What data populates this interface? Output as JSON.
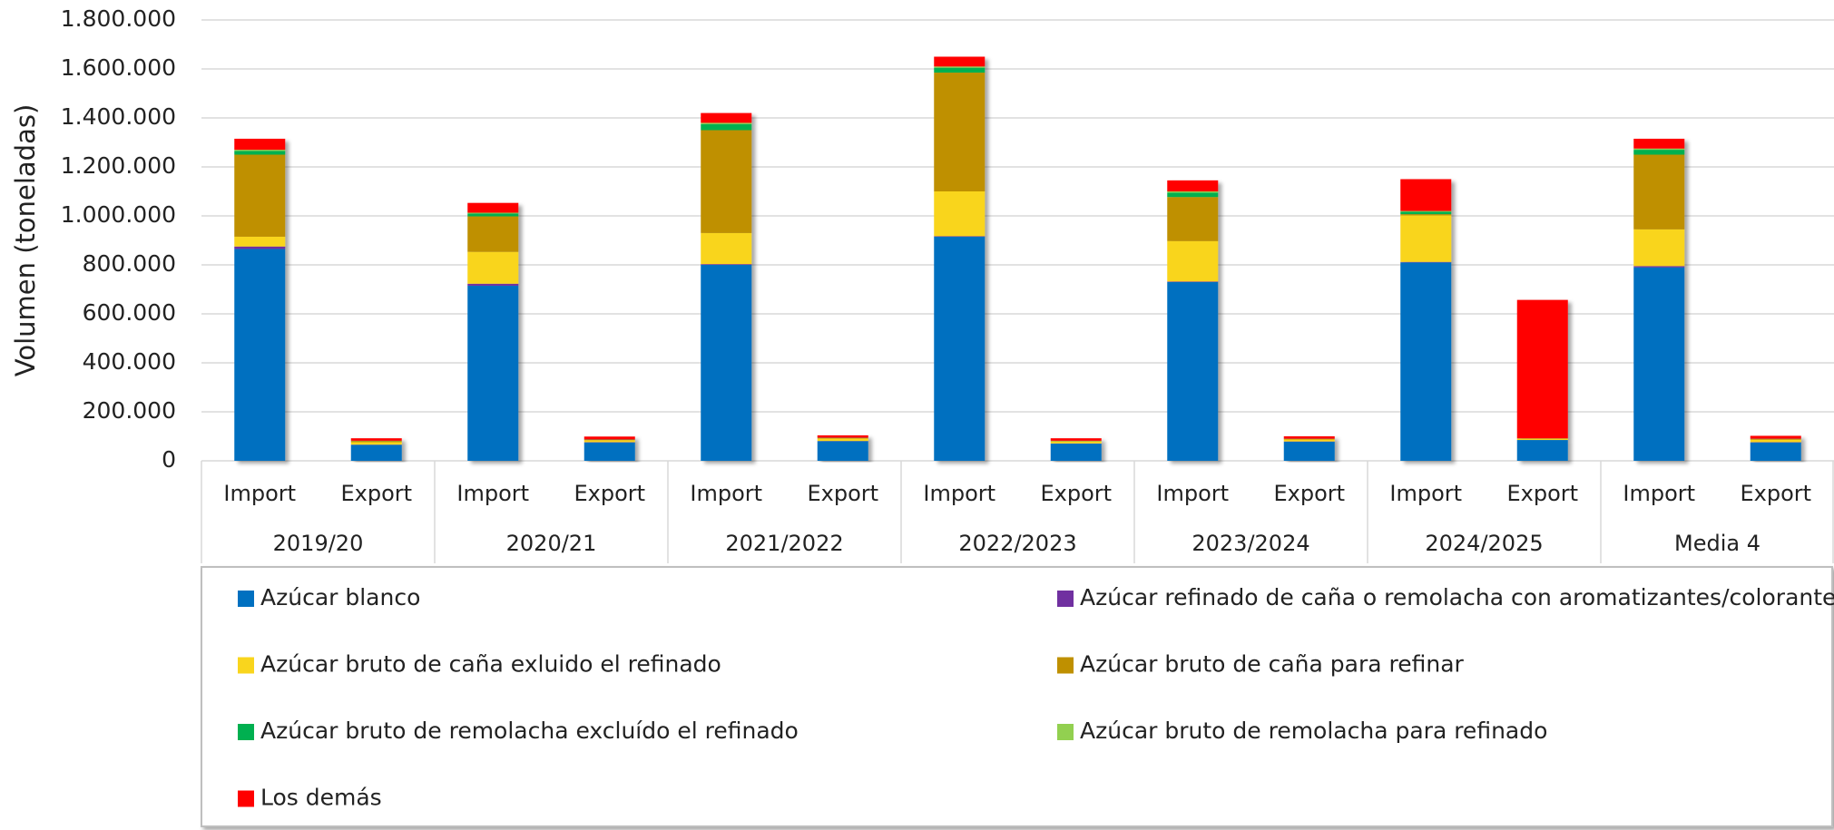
{
  "chart_data": {
    "type": "stacked_bar",
    "y_label": "Volumen (toneladas)",
    "categories": [
      "Import",
      "Export",
      "Import",
      "Export",
      "Import",
      "Export",
      "Import",
      "Export",
      "Import",
      "Export",
      "Import",
      "Export",
      "Import",
      "Export"
    ],
    "groups": [
      "2019/20",
      "2020/21",
      "2021/2022",
      "2022/2023",
      "2023/2024",
      "2024/2025",
      "Media 4"
    ],
    "ylim": [
      0,
      1800000
    ],
    "yticks": [
      0,
      {
        "value": 200000,
        "label": "200.000"
      },
      {
        "value": 400000,
        "label": "400.000"
      },
      {
        "value": 600000,
        "label": "600.000"
      },
      {
        "value": 800000,
        "label": "800.000"
      },
      {
        "value": 1000000,
        "label": "1.000.000"
      },
      {
        "value": 1200000,
        "label": "1.200.000"
      },
      {
        "value": 1400000,
        "label": "1.400.000"
      },
      {
        "value": 1600000,
        "label": "1.600.000"
      },
      {
        "value": 1800000,
        "label": "1.800.000"
      }
    ],
    "grid": true,
    "legend": "bottom",
    "series": [
      {
        "name": "Azúcar blanco",
        "color": "#0070c0",
        "values": [
          865000,
          65000,
          715000,
          75000,
          800000,
          80000,
          915000,
          70000,
          730000,
          78000,
          810000,
          85000,
          790000,
          75000
        ]
      },
      {
        "name": "Azúcar refinado de caña o remolacha con aromatizantes/colorantes",
        "color": "#7030a0",
        "values": [
          10000,
          1000,
          8000,
          1000,
          3000,
          1000,
          2000,
          1000,
          2000,
          1000,
          2000,
          0,
          5000,
          1000
        ]
      },
      {
        "name": "Azúcar bruto de caña exluido el refinado",
        "color": "#f9d51d",
        "values": [
          40000,
          10000,
          130000,
          8000,
          127000,
          10000,
          183000,
          8000,
          165000,
          8000,
          190000,
          5000,
          150000,
          10000
        ]
      },
      {
        "name": "Azúcar bruto de caña para refinar",
        "color": "#bf9000",
        "values": [
          335000,
          5000,
          145000,
          2000,
          420000,
          2000,
          485000,
          2000,
          180000,
          2000,
          5000,
          2000,
          305000,
          3000
        ]
      },
      {
        "name": "Azúcar bruto de remolacha excluído el refinado",
        "color": "#00b050",
        "values": [
          15000,
          1000,
          12000,
          1000,
          25000,
          1000,
          20000,
          1000,
          18000,
          1000,
          10000,
          0,
          20000,
          1000
        ]
      },
      {
        "name": "Azúcar bruto de remolacha para refinado",
        "color": "#92d050",
        "values": [
          5000,
          0,
          3000,
          0,
          5000,
          0,
          5000,
          0,
          5000,
          0,
          3000,
          0,
          5000,
          0
        ]
      },
      {
        "name": "Los demás",
        "color": "#ff0000",
        "values": [
          45000,
          10000,
          40000,
          12000,
          40000,
          10000,
          40000,
          10000,
          45000,
          10000,
          130000,
          565000,
          40000,
          12000
        ]
      }
    ]
  }
}
